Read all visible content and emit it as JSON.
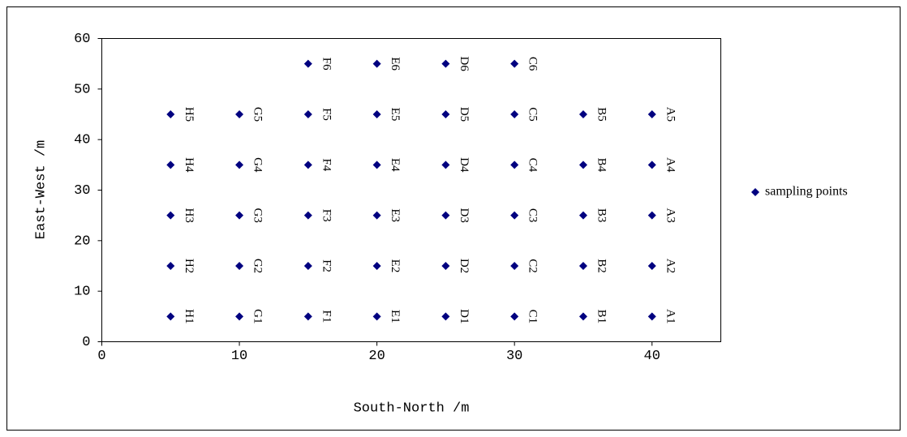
{
  "chart_data": {
    "type": "scatter",
    "xlabel": "South-North /m",
    "ylabel": "East-West /m",
    "xlim": [
      0,
      45
    ],
    "xticks": [
      0,
      10,
      20,
      30,
      40
    ],
    "ylim": [
      0,
      60
    ],
    "yticks": [
      0,
      10,
      20,
      30,
      40,
      50,
      60
    ],
    "grid": false,
    "legend": "right",
    "series": [
      {
        "name": "sampling points",
        "color": "#000080",
        "x": [
          5,
          5,
          5,
          5,
          5,
          10,
          10,
          10,
          10,
          10,
          15,
          15,
          15,
          15,
          15,
          15,
          20,
          20,
          20,
          20,
          20,
          20,
          25,
          25,
          25,
          25,
          25,
          25,
          30,
          30,
          30,
          30,
          30,
          30,
          35,
          35,
          35,
          35,
          35,
          40,
          40,
          40,
          40,
          40
        ],
        "values": [
          5,
          15,
          25,
          35,
          45,
          5,
          15,
          25,
          35,
          45,
          5,
          15,
          25,
          35,
          45,
          55,
          5,
          15,
          25,
          35,
          45,
          55,
          5,
          15,
          25,
          35,
          45,
          55,
          5,
          15,
          25,
          35,
          45,
          55,
          5,
          15,
          25,
          35,
          45,
          5,
          15,
          25,
          35,
          45
        ],
        "labels": [
          "H1",
          "H2",
          "H3",
          "H4",
          "H5",
          "G1",
          "G2",
          "G3",
          "G4",
          "G5",
          "F1",
          "F2",
          "F3",
          "F4",
          "F5",
          "F6",
          "E1",
          "E2",
          "E3",
          "E4",
          "E5",
          "E6",
          "D1",
          "D2",
          "D3",
          "D4",
          "D5",
          "D6",
          "C1",
          "C2",
          "C3",
          "C4",
          "C5",
          "C6",
          "B1",
          "B2",
          "B3",
          "B4",
          "B5",
          "A1",
          "A2",
          "A3",
          "A4",
          "A5"
        ]
      }
    ]
  }
}
